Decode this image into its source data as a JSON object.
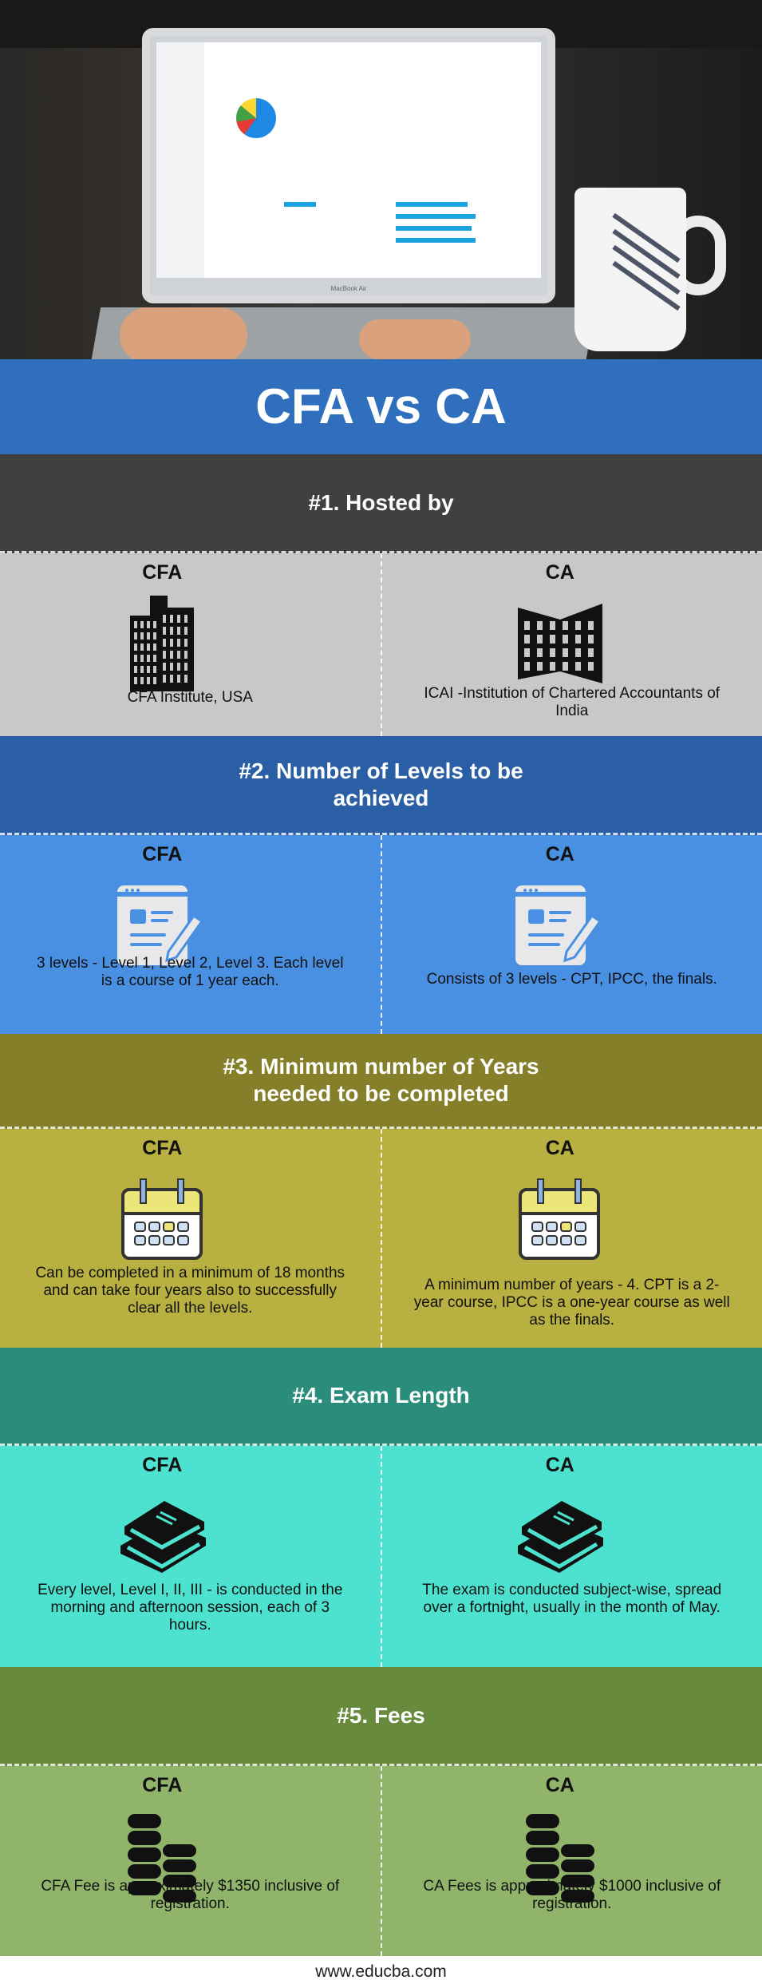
{
  "title": "CFA vs CA",
  "colors": {
    "title_bg": "#2f6fbd"
  },
  "sections": [
    {
      "header": "#1. Hosted by",
      "header_bg": "#404040",
      "content_bg": "#c8c8c8",
      "icon": "office-building-icon",
      "cfa": {
        "label": "CFA",
        "text": "CFA Institute, USA"
      },
      "ca": {
        "label": "CA",
        "text": "ICAI -Institution of Chartered Accountants of India"
      }
    },
    {
      "header": "#2. Number of Levels to be achieved",
      "header_bg": "#2b5fa5",
      "content_bg": "#4a90e2",
      "icon": "document-edit-icon",
      "cfa": {
        "label": "CFA",
        "text": "3 levels - Level 1, Level 2, Level 3. Each level is a course of 1 year each."
      },
      "ca": {
        "label": "CA",
        "text": "Consists of 3 levels - CPT, IPCC, the finals."
      }
    },
    {
      "header": "#3. Minimum number of Years needed to be completed",
      "header_bg": "#857f2a",
      "content_bg": "#b8b040",
      "icon": "calendar-icon",
      "cfa": {
        "label": "CFA",
        "text": "Can be completed in a minimum of 18 months and can take four years also to successfully clear all the levels."
      },
      "ca": {
        "label": "CA",
        "text": "A minimum number of years - 4. CPT is a 2-year course, IPCC is a one-year course as well as the finals."
      }
    },
    {
      "header": "#4. Exam Length",
      "header_bg": "#2a8c7a",
      "content_bg": "#4de2cf",
      "icon": "books-icon",
      "cfa": {
        "label": "CFA",
        "text": "Every level, Level I, II, III - is conducted in the morning and afternoon session, each of 3 hours."
      },
      "ca": {
        "label": "CA",
        "text": "The exam is conducted subject-wise, spread over a fortnight, usually in the month of May."
      }
    },
    {
      "header": "#5. Fees",
      "header_bg": "#688a3c",
      "content_bg": "#8fb46a",
      "icon": "coins-icon",
      "cfa": {
        "label": "CFA",
        "text": "CFA Fee is approximately $1350 inclusive of registration."
      },
      "ca": {
        "label": "CA",
        "text": "CA Fees is approximately $1000 inclusive of registration."
      }
    }
  ],
  "footer": "www.educba.com"
}
